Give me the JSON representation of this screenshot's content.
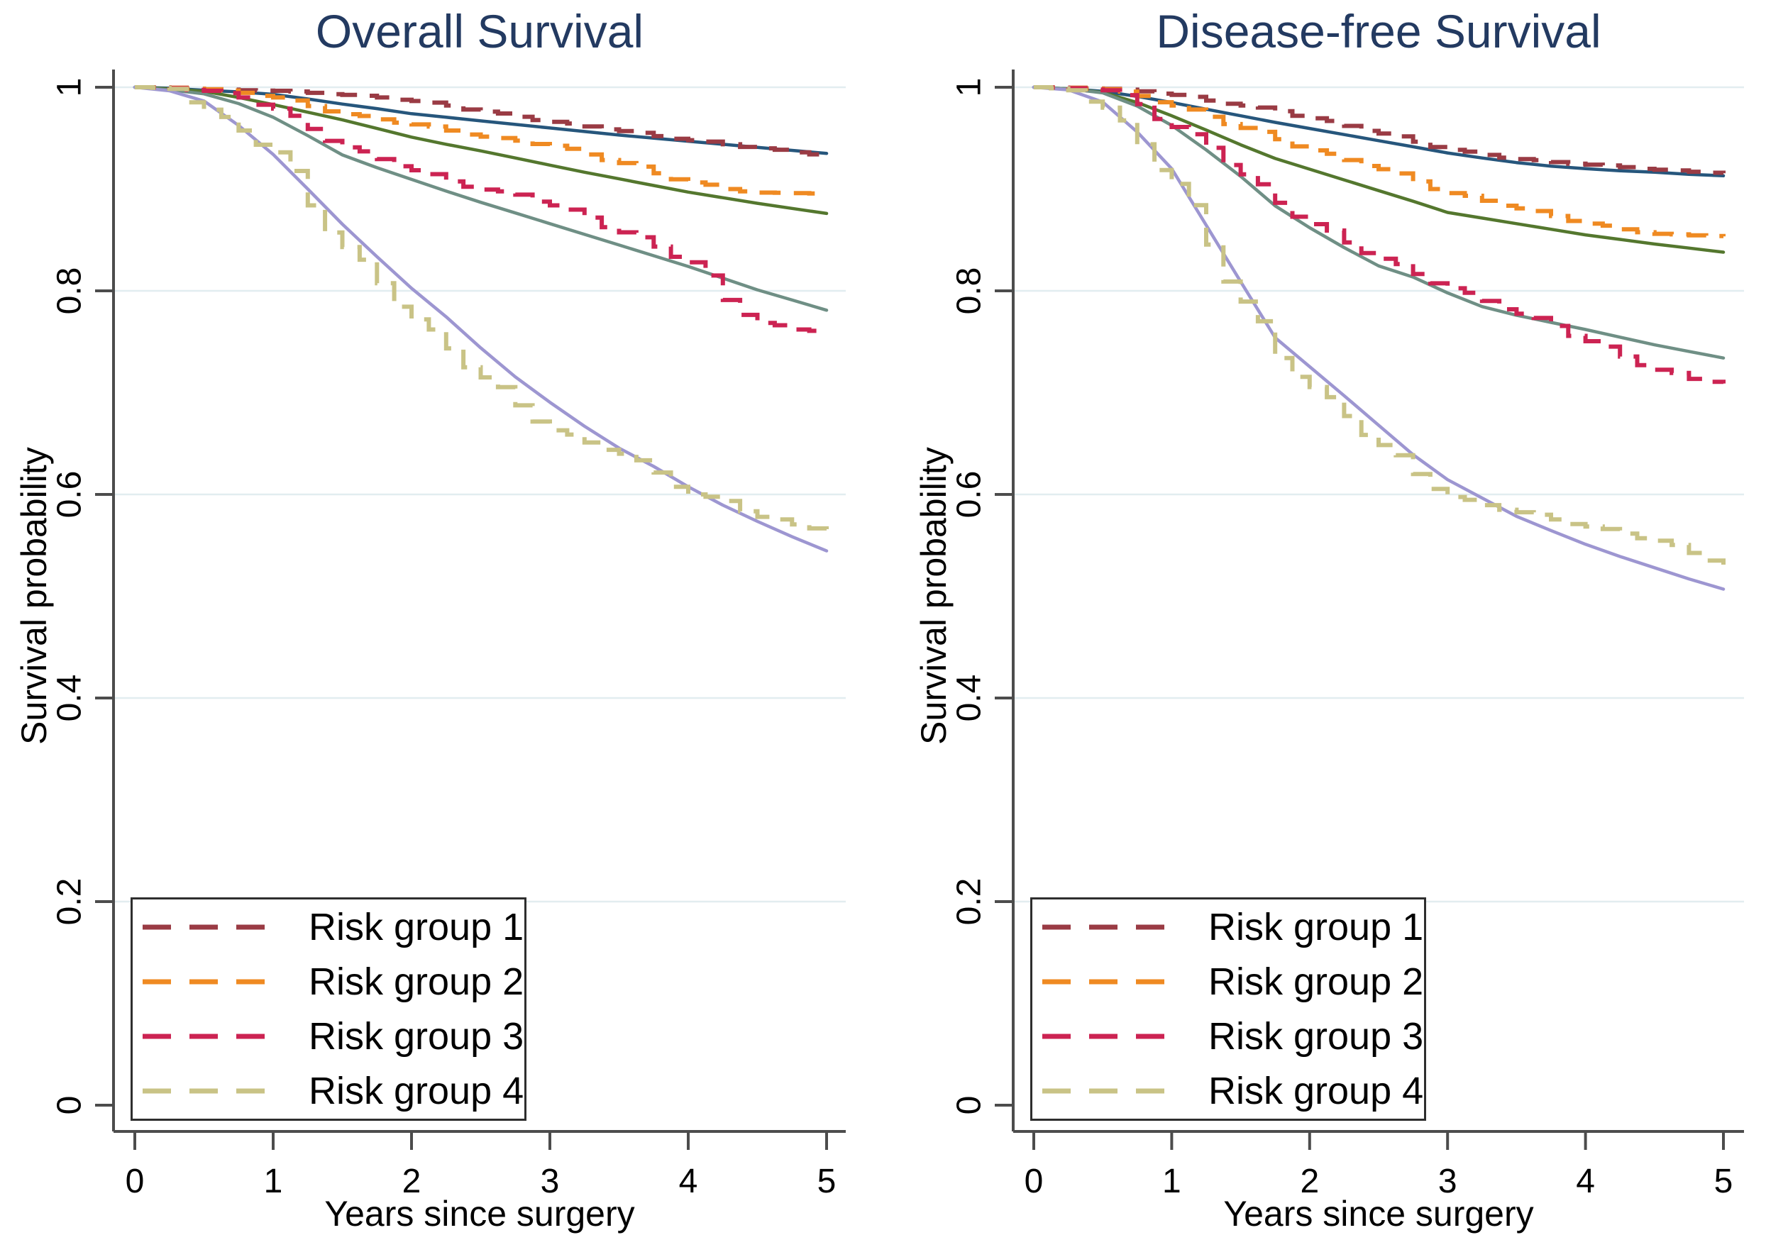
{
  "figure": {
    "background": "#ffffff",
    "grid_color": "#e2edf0",
    "axis_color": "#4c4c4c",
    "title_color": "#233a61",
    "legend_border_color": "#2e2e2e"
  },
  "chart_data": [
    {
      "type": "line",
      "title": "Overall Survival",
      "xlabel": "Years since surgery",
      "ylabel": "Survival probability",
      "xlim": [
        0,
        5
      ],
      "ylim": [
        0,
        1
      ],
      "xticks": [
        0,
        1,
        2,
        3,
        4,
        5
      ],
      "xticklabels": [
        "0",
        "1",
        "2",
        "3",
        "4",
        "5"
      ],
      "yticks": [
        0,
        0.2,
        0.4,
        0.6,
        0.8,
        1
      ],
      "yticklabels": [
        "0",
        "0.2",
        "0.4",
        "0.6",
        "0.8",
        "1"
      ],
      "grid": "horizontal",
      "legend": {
        "position": "bottom-left",
        "entries": [
          {
            "label": "Risk group 1",
            "color": "#9a3b44"
          },
          {
            "label": "Risk group 2",
            "color": "#ef8a22"
          },
          {
            "label": "Risk group 3",
            "color": "#cc2352"
          },
          {
            "label": "Risk group 4",
            "color": "#c9c386"
          }
        ]
      },
      "x": [
        0,
        0.25,
        0.5,
        0.75,
        1,
        1.25,
        1.5,
        1.75,
        2,
        2.25,
        2.5,
        2.75,
        3,
        3.25,
        3.5,
        3.75,
        4,
        4.25,
        4.5,
        4.75,
        5
      ],
      "series": [
        {
          "name": "Risk group 1 (observed)",
          "style": "dashed",
          "color": "#9a3b44",
          "values": [
            1,
            0.9995,
            0.998,
            0.997,
            0.9965,
            0.9945,
            0.9925,
            0.99,
            0.9865,
            0.982,
            0.976,
            0.971,
            0.966,
            0.9615,
            0.957,
            0.952,
            0.948,
            0.944,
            0.94,
            0.936,
            0.933
          ]
        },
        {
          "name": "Risk group 1 (fitted)",
          "style": "solid",
          "color": "#26567c",
          "values": [
            1,
            0.999,
            0.997,
            0.9955,
            0.993,
            0.9885,
            0.9835,
            0.979,
            0.974,
            0.9705,
            0.967,
            0.9635,
            0.96,
            0.9565,
            0.953,
            0.95,
            0.947,
            0.944,
            0.941,
            0.938,
            0.935
          ]
        },
        {
          "name": "Risk group 2 (observed)",
          "style": "dashed",
          "color": "#ef8a22",
          "values": [
            1,
            0.9995,
            0.998,
            0.9945,
            0.99,
            0.9815,
            0.9735,
            0.9685,
            0.9635,
            0.9575,
            0.9515,
            0.9475,
            0.9425,
            0.934,
            0.9255,
            0.9155,
            0.9065,
            0.9,
            0.8965,
            0.896,
            0.8955
          ]
        },
        {
          "name": "Risk group 2 (fitted)",
          "style": "solid",
          "color": "#54772e",
          "values": [
            1,
            0.9985,
            0.996,
            0.99,
            0.983,
            0.9755,
            0.968,
            0.9595,
            0.951,
            0.944,
            0.9375,
            0.9305,
            0.9235,
            0.9165,
            0.91,
            0.9035,
            0.897,
            0.8915,
            0.886,
            0.881,
            0.876
          ]
        },
        {
          "name": "Risk group 3 (observed)",
          "style": "dashed",
          "color": "#cc2352",
          "values": [
            1,
            0.999,
            0.9965,
            0.99,
            0.979,
            0.959,
            0.941,
            0.9295,
            0.9185,
            0.9075,
            0.8995,
            0.8945,
            0.884,
            0.872,
            0.8575,
            0.8435,
            0.828,
            0.791,
            0.7685,
            0.762,
            0.76
          ]
        },
        {
          "name": "Risk group 3 (fitted)",
          "style": "solid",
          "color": "#6f8f85",
          "values": [
            1,
            0.9975,
            0.9935,
            0.984,
            0.9705,
            0.9525,
            0.9335,
            0.921,
            0.9095,
            0.898,
            0.887,
            0.8765,
            0.866,
            0.8555,
            0.845,
            0.8345,
            0.824,
            0.8125,
            0.801,
            0.791,
            0.781
          ]
        },
        {
          "name": "Risk group 4 (observed)",
          "style": "dashed",
          "color": "#c9c386",
          "values": [
            1,
            0.9985,
            0.978,
            0.9575,
            0.936,
            0.884,
            0.843,
            0.8075,
            0.772,
            0.7435,
            0.715,
            0.6875,
            0.663,
            0.651,
            0.64,
            0.6215,
            0.6,
            0.5935,
            0.578,
            0.5705,
            0.5645
          ]
        },
        {
          "name": "Risk group 4 (fitted)",
          "style": "solid",
          "color": "#9d96d1",
          "values": [
            1,
            0.9965,
            0.9865,
            0.9625,
            0.934,
            0.9,
            0.8655,
            0.8335,
            0.8025,
            0.7745,
            0.744,
            0.7155,
            0.6905,
            0.667,
            0.6455,
            0.6275,
            0.6075,
            0.5895,
            0.5735,
            0.5585,
            0.5445
          ]
        }
      ]
    },
    {
      "type": "line",
      "title": "Disease-free Survival",
      "xlabel": "Years since surgery",
      "ylabel": "Survival probability",
      "xlim": [
        0,
        5
      ],
      "ylim": [
        0,
        1
      ],
      "xticks": [
        0,
        1,
        2,
        3,
        4,
        5
      ],
      "xticklabels": [
        "0",
        "1",
        "2",
        "3",
        "4",
        "5"
      ],
      "yticks": [
        0,
        0.2,
        0.4,
        0.6,
        0.8,
        1
      ],
      "yticklabels": [
        "0",
        "0.2",
        "0.4",
        "0.6",
        "0.8",
        "1"
      ],
      "grid": "horizontal",
      "legend": {
        "position": "bottom-left",
        "entries": [
          {
            "label": "Risk group 1",
            "color": "#9a3b44"
          },
          {
            "label": "Risk group 2",
            "color": "#ef8a22"
          },
          {
            "label": "Risk group 3",
            "color": "#cc2352"
          },
          {
            "label": "Risk group 4",
            "color": "#c9c386"
          }
        ]
      },
      "x": [
        0,
        0.25,
        0.5,
        0.75,
        1,
        1.25,
        1.5,
        1.75,
        2,
        2.25,
        2.5,
        2.75,
        3,
        3.25,
        3.5,
        3.75,
        4,
        4.25,
        4.5,
        4.75,
        5
      ],
      "series": [
        {
          "name": "Risk group 1 (observed)",
          "style": "dashed",
          "color": "#9a3b44",
          "values": [
            1,
            0.9995,
            0.9985,
            0.996,
            0.9925,
            0.987,
            0.982,
            0.9765,
            0.9695,
            0.962,
            0.9545,
            0.9465,
            0.9385,
            0.9335,
            0.9295,
            0.9265,
            0.924,
            0.9215,
            0.919,
            0.917,
            0.9155
          ]
        },
        {
          "name": "Risk group 1 (fitted)",
          "style": "solid",
          "color": "#26567c",
          "values": [
            1,
            0.9985,
            0.996,
            0.991,
            0.985,
            0.9785,
            0.972,
            0.9655,
            0.9595,
            0.9535,
            0.9475,
            0.9415,
            0.9355,
            0.9305,
            0.926,
            0.9225,
            0.92,
            0.918,
            0.9165,
            0.9145,
            0.913
          ]
        },
        {
          "name": "Risk group 2 (observed)",
          "style": "dashed",
          "color": "#ef8a22",
          "values": [
            1,
            0.9995,
            0.998,
            0.9915,
            0.982,
            0.971,
            0.96,
            0.949,
            0.938,
            0.9285,
            0.9195,
            0.9075,
            0.896,
            0.8885,
            0.881,
            0.8735,
            0.866,
            0.8605,
            0.856,
            0.8545,
            0.8535
          ]
        },
        {
          "name": "Risk group 2 (fitted)",
          "style": "solid",
          "color": "#54772e",
          "values": [
            1,
            0.9985,
            0.995,
            0.985,
            0.972,
            0.958,
            0.9435,
            0.93,
            0.9195,
            0.909,
            0.8985,
            0.888,
            0.877,
            0.8715,
            0.866,
            0.8605,
            0.855,
            0.8505,
            0.846,
            0.842,
            0.838
          ]
        },
        {
          "name": "Risk group 3 (observed)",
          "style": "dashed",
          "color": "#cc2352",
          "values": [
            1,
            0.999,
            0.997,
            0.9835,
            0.961,
            0.9405,
            0.9145,
            0.8865,
            0.8655,
            0.8475,
            0.8315,
            0.8165,
            0.8025,
            0.79,
            0.7775,
            0.7655,
            0.7505,
            0.7355,
            0.7225,
            0.7135,
            0.709
          ]
        },
        {
          "name": "Risk group 3 (fitted)",
          "style": "solid",
          "color": "#6f8f85",
          "values": [
            1,
            0.9985,
            0.9945,
            0.9815,
            0.9625,
            0.9385,
            0.9125,
            0.8835,
            0.862,
            0.8425,
            0.8245,
            0.8135,
            0.798,
            0.7845,
            0.776,
            0.769,
            0.762,
            0.7545,
            0.747,
            0.7405,
            0.734
          ]
        },
        {
          "name": "Risk group 4 (observed)",
          "style": "dashed",
          "color": "#c9c386",
          "values": [
            1,
            0.997,
            0.98,
            0.944,
            0.905,
            0.8455,
            0.7895,
            0.734,
            0.7055,
            0.677,
            0.6485,
            0.62,
            0.5975,
            0.5895,
            0.5825,
            0.5755,
            0.5685,
            0.5615,
            0.5545,
            0.5425,
            0.531
          ]
        },
        {
          "name": "Risk group 4 (fitted)",
          "style": "solid",
          "color": "#9d96d1",
          "values": [
            1,
            0.9975,
            0.9855,
            0.956,
            0.92,
            0.8645,
            0.809,
            0.754,
            0.7255,
            0.697,
            0.668,
            0.639,
            0.6145,
            0.5965,
            0.5785,
            0.5645,
            0.551,
            0.539,
            0.528,
            0.517,
            0.507
          ]
        }
      ]
    }
  ]
}
